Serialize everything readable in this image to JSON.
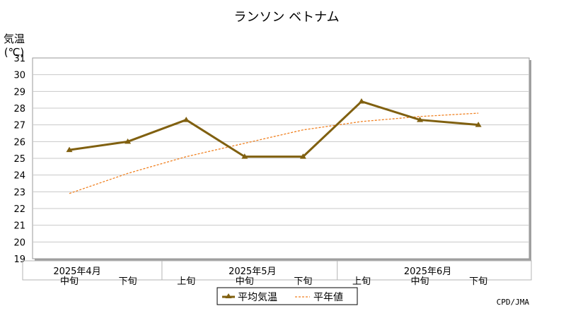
{
  "chart_data": {
    "type": "line",
    "title": "ランソン ベトナム",
    "ylabel_line1": "気温",
    "ylabel_line2": "(℃)",
    "ylim": [
      19,
      31
    ],
    "yticks": [
      19,
      20,
      21,
      22,
      23,
      24,
      25,
      26,
      27,
      28,
      29,
      30,
      31
    ],
    "grid": true,
    "x": [
      "中旬",
      "下旬",
      "上旬",
      "中旬",
      "下旬",
      "上旬",
      "中旬",
      "下旬"
    ],
    "month_labels": [
      {
        "label": "2025年4月",
        "index": 0
      },
      {
        "label": "2025年5月",
        "index": 3
      },
      {
        "label": "2025年6月",
        "index": 6
      }
    ],
    "series": [
      {
        "name": "平均気温",
        "color": "#806010",
        "style": "solid-triangle",
        "values": [
          25.5,
          26.0,
          27.3,
          25.1,
          25.1,
          28.4,
          27.3,
          27.0
        ]
      },
      {
        "name": "平年値",
        "color": "#f08020",
        "style": "dashed",
        "values": [
          22.9,
          24.1,
          25.1,
          25.9,
          26.7,
          27.2,
          27.5,
          27.7
        ]
      }
    ],
    "legend_position": "bottom-center",
    "credit": "CPD/JMA"
  }
}
